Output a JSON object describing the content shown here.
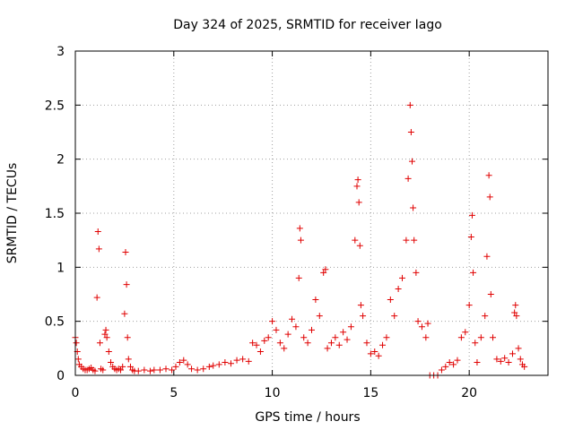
{
  "chart_data": {
    "type": "scatter",
    "title": "Day 324 of 2025, SRMTID for receiver Iago",
    "xlabel": "GPS time / hours",
    "ylabel": "SRMTID / TECUs",
    "xlim": [
      0,
      24
    ],
    "ylim": [
      0,
      3
    ],
    "grid": true,
    "x_ticks": [
      0,
      5,
      10,
      15,
      20
    ],
    "x_tick_labels": [
      "0",
      "5",
      "10",
      "15",
      "20"
    ],
    "y_ticks": [
      0,
      0.5,
      1,
      1.5,
      2,
      2.5,
      3
    ],
    "y_tick_labels": [
      "0",
      "0.5",
      "1",
      "1.5",
      "2",
      "2.5",
      "3"
    ],
    "marker": "plus",
    "color": "#e00000",
    "series": [
      {
        "name": "SRMTID",
        "x": [
          0.0,
          0.05,
          0.1,
          0.15,
          0.2,
          0.3,
          0.4,
          0.5,
          0.6,
          0.7,
          0.8,
          0.9,
          1.0,
          1.1,
          1.15,
          1.2,
          1.25,
          1.3,
          1.4,
          1.5,
          1.55,
          1.6,
          1.7,
          1.8,
          1.9,
          2.0,
          2.1,
          2.2,
          2.3,
          2.4,
          2.5,
          2.55,
          2.6,
          2.65,
          2.7,
          2.8,
          2.9,
          3.0,
          3.2,
          3.5,
          3.8,
          4.0,
          4.3,
          4.6,
          4.9,
          5.1,
          5.3,
          5.5,
          5.7,
          5.9,
          6.2,
          6.5,
          6.8,
          7.0,
          7.3,
          7.6,
          7.9,
          8.2,
          8.5,
          8.8,
          9.0,
          9.2,
          9.4,
          9.6,
          9.8,
          10.0,
          10.2,
          10.4,
          10.6,
          10.8,
          11.0,
          11.2,
          11.35,
          11.4,
          11.45,
          11.6,
          11.8,
          12.0,
          12.2,
          12.4,
          12.6,
          12.7,
          12.8,
          13.0,
          13.2,
          13.4,
          13.6,
          13.8,
          14.0,
          14.2,
          14.3,
          14.35,
          14.4,
          14.45,
          14.5,
          14.6,
          14.8,
          15.0,
          15.2,
          15.4,
          15.6,
          15.8,
          16.0,
          16.2,
          16.4,
          16.6,
          16.8,
          16.9,
          17.0,
          17.05,
          17.1,
          17.15,
          17.2,
          17.3,
          17.4,
          17.6,
          17.8,
          17.9,
          18.0,
          18.2,
          18.4,
          18.6,
          18.8,
          19.0,
          19.2,
          19.4,
          19.6,
          19.8,
          20.0,
          20.1,
          20.15,
          20.2,
          20.3,
          20.4,
          20.6,
          20.8,
          20.9,
          21.0,
          21.05,
          21.1,
          21.2,
          21.4,
          21.6,
          21.8,
          22.0,
          22.2,
          22.3,
          22.35,
          22.4,
          22.5,
          22.6,
          22.7,
          22.8
        ],
        "values": [
          0.35,
          0.3,
          0.22,
          0.15,
          0.1,
          0.08,
          0.06,
          0.05,
          0.05,
          0.06,
          0.07,
          0.05,
          0.04,
          0.72,
          1.33,
          1.17,
          0.3,
          0.06,
          0.05,
          0.38,
          0.42,
          0.35,
          0.22,
          0.12,
          0.08,
          0.06,
          0.05,
          0.06,
          0.05,
          0.08,
          0.57,
          1.14,
          0.84,
          0.35,
          0.15,
          0.08,
          0.05,
          0.04,
          0.04,
          0.05,
          0.04,
          0.05,
          0.05,
          0.06,
          0.05,
          0.08,
          0.12,
          0.14,
          0.1,
          0.06,
          0.05,
          0.06,
          0.08,
          0.09,
          0.1,
          0.12,
          0.11,
          0.14,
          0.15,
          0.13,
          0.3,
          0.28,
          0.22,
          0.32,
          0.35,
          0.5,
          0.42,
          0.3,
          0.25,
          0.38,
          0.52,
          0.45,
          0.9,
          1.36,
          1.25,
          0.35,
          0.3,
          0.42,
          0.7,
          0.55,
          0.95,
          0.98,
          0.25,
          0.3,
          0.35,
          0.28,
          0.4,
          0.33,
          0.45,
          1.25,
          1.75,
          1.81,
          1.6,
          1.2,
          0.65,
          0.55,
          0.3,
          0.2,
          0.22,
          0.18,
          0.28,
          0.35,
          0.7,
          0.55,
          0.8,
          0.9,
          1.25,
          1.82,
          2.5,
          2.25,
          1.98,
          1.55,
          1.25,
          0.95,
          0.5,
          0.45,
          0.35,
          0.48,
          0.0,
          0.0,
          0.0,
          0.05,
          0.08,
          0.12,
          0.1,
          0.14,
          0.35,
          0.4,
          0.65,
          1.28,
          1.48,
          0.95,
          0.3,
          0.12,
          0.35,
          0.55,
          1.1,
          1.85,
          1.65,
          0.75,
          0.35,
          0.15,
          0.13,
          0.16,
          0.12,
          0.2,
          0.58,
          0.65,
          0.55,
          0.25,
          0.15,
          0.1,
          0.08
        ]
      }
    ]
  }
}
